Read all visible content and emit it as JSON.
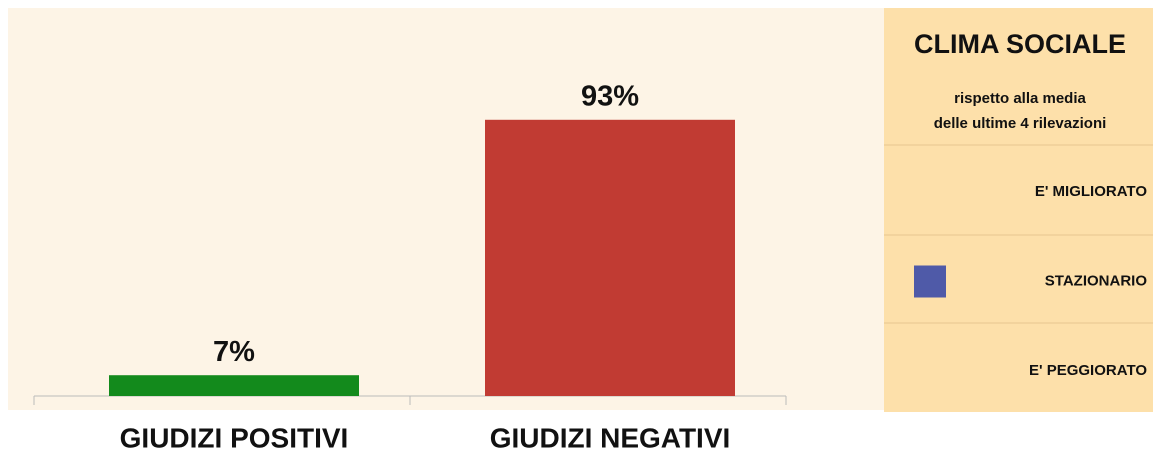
{
  "chart_data": {
    "type": "bar",
    "categories": [
      "GIUDIZI POSITIVI",
      "GIUDIZI NEGATIVI"
    ],
    "values": [
      7,
      93
    ],
    "value_labels": [
      "7%",
      "93%"
    ],
    "colors": [
      "#138a1c",
      "#c13b33"
    ]
  },
  "panel": {
    "title": "CLIMA SOCIALE",
    "subtitle": [
      "rispetto alla media",
      "delle ultime 4 rilevazioni"
    ],
    "items": [
      {
        "label": "E' MIGLIORATO"
      },
      {
        "label": "STAZIONARIO",
        "color": "#4f5aa8"
      },
      {
        "label": "E' PEGGIORATO"
      }
    ]
  }
}
